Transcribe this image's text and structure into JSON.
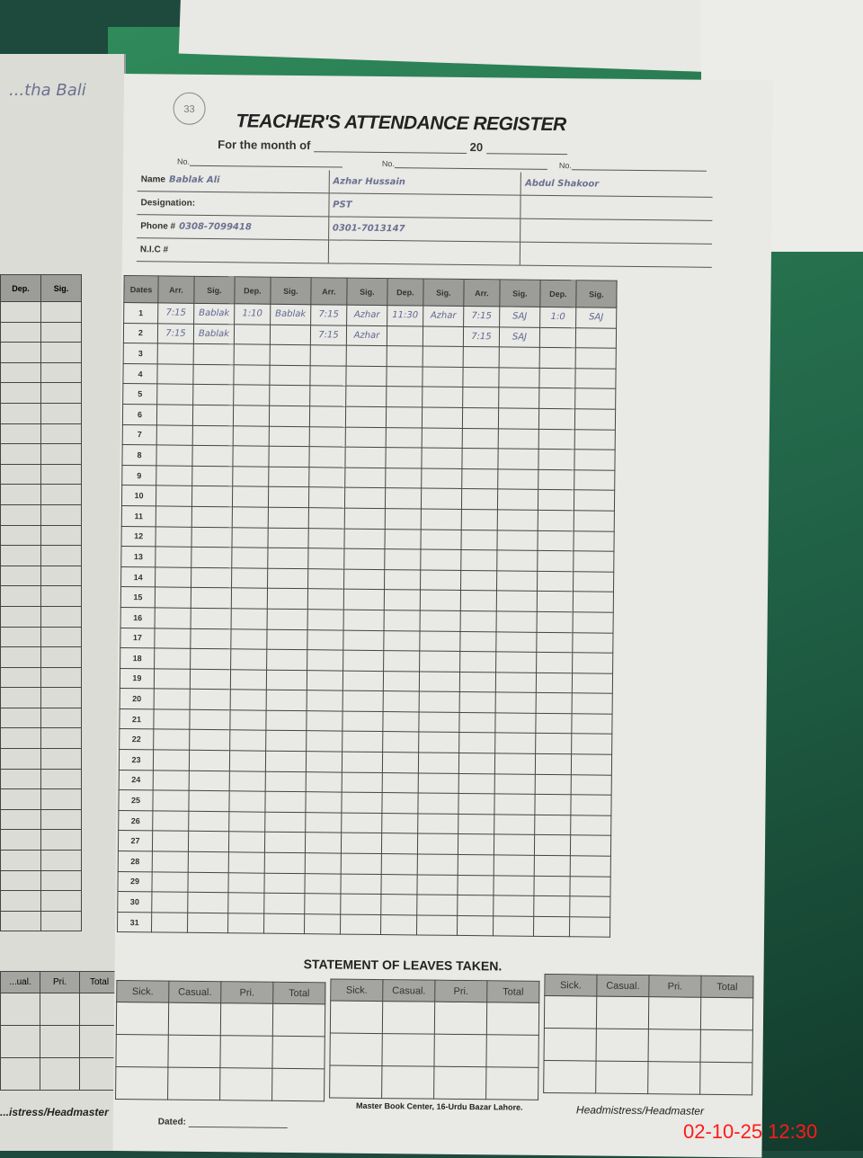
{
  "left_page": {
    "handwritten_note": "...tha Bali",
    "columns": [
      "Dep.",
      "Sig."
    ],
    "leave_columns": [
      "...ual.",
      "Pri.",
      "Total"
    ],
    "signature_label": "...istress/Headmaster"
  },
  "register": {
    "page_number": "33",
    "title": "TEACHER'S ATTENDANCE REGISTER",
    "month_label": "For the month of",
    "year_label": "20",
    "no_label": "No.",
    "field_labels": {
      "name": "Name",
      "designation": "Designation:",
      "phone": "Phone #",
      "nic": "N.I.C #"
    },
    "teachers": [
      {
        "name": "Bablak Ali",
        "designation": "",
        "phone": "0308-7099418",
        "nic": ""
      },
      {
        "name": "Azhar Hussain",
        "designation": "PST",
        "phone": "0301-7013147",
        "nic": ""
      },
      {
        "name": "Abdul Shakoor",
        "designation": "",
        "phone": "",
        "nic": ""
      }
    ],
    "date_header": "Dates",
    "column_headers": [
      "Arr.",
      "Sig.",
      "Dep.",
      "Sig."
    ],
    "days": 31,
    "entries": [
      [
        [
          "7:15",
          "Bablak",
          "1:10",
          "Bablak"
        ],
        [
          "7:15",
          "Azhar",
          "11:30",
          "Azhar"
        ],
        [
          "7:15",
          "SAJ",
          "1:0",
          "SAJ"
        ]
      ],
      [
        [
          "7:15",
          "Bablak",
          "",
          ""
        ],
        [
          "7:15",
          "Azhar",
          "",
          ""
        ],
        [
          "7:15",
          "SAJ",
          "",
          ""
        ]
      ]
    ]
  },
  "leaves": {
    "title": "STATEMENT OF LEAVES TAKEN.",
    "columns": [
      "Sick.",
      "Casual.",
      "Pri.",
      "Total"
    ]
  },
  "footer": {
    "publisher": "Master Book Center, 16-Urdu Bazar Lahore.",
    "signature_label": "Headmistress/Headmaster",
    "dated_label": "Dated:"
  },
  "timestamp": "02-10-25  12:30"
}
